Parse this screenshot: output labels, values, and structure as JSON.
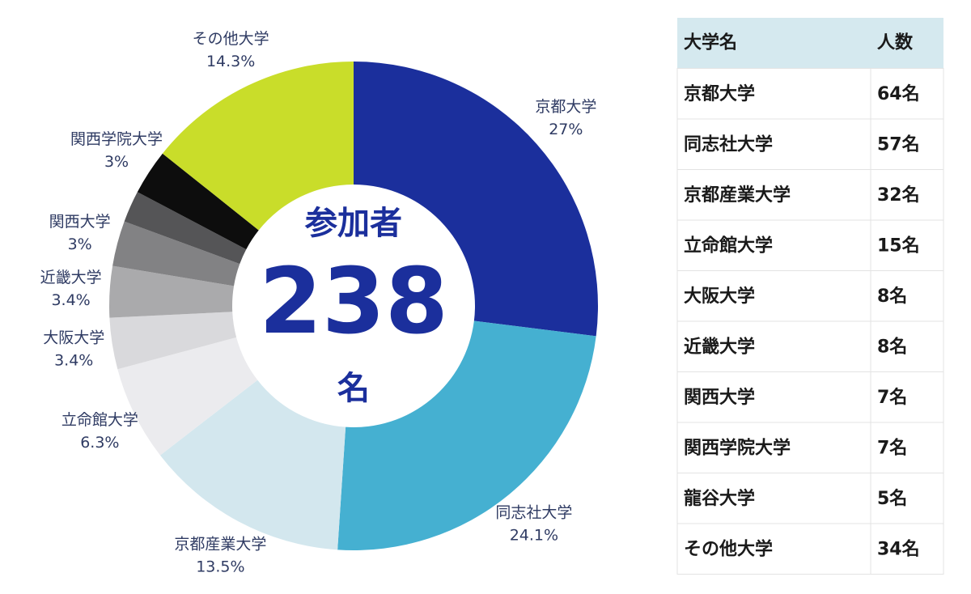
{
  "chart_data": {
    "type": "pie",
    "categories": [
      "京都大学",
      "同志社大学",
      "京都産業大学",
      "立命館大学",
      "大阪大学",
      "近畿大学",
      "関西大学",
      null,
      "関西学院大学",
      "その他大学"
    ],
    "values": [
      27,
      24.1,
      13.5,
      6.3,
      3.4,
      3.4,
      3,
      2.1,
      3,
      14.3
    ],
    "value_labels": [
      "27%",
      "24.1%",
      "13.5%",
      "6.3%",
      "3.4%",
      "3.4%",
      "3%",
      null,
      "3%",
      "14.3%"
    ],
    "colors": [
      "#1b2f9c",
      "#45b0d1",
      "#d3e7ee",
      "#ebebee",
      "#d9d9dc",
      "#aaaaac",
      "#828284",
      "#555557",
      "#0d0d0d",
      "#c9dd2a"
    ],
    "center_title": "参加者",
    "center_value": 238,
    "center_unit": "名"
  },
  "table": {
    "header": [
      "大学名",
      "人数"
    ],
    "rows": [
      [
        "京都大学",
        "64名"
      ],
      [
        "同志社大学",
        "57名"
      ],
      [
        "京都産業大学",
        "32名"
      ],
      [
        "立命館大学",
        "15名"
      ],
      [
        "大阪大学",
        "8名"
      ],
      [
        "近畿大学",
        "8名"
      ],
      [
        "関西大学",
        "7名"
      ],
      [
        "関西学院大学",
        "7名"
      ],
      [
        "龍谷大学",
        "5名"
      ],
      [
        "その他大学",
        "34名"
      ]
    ]
  }
}
